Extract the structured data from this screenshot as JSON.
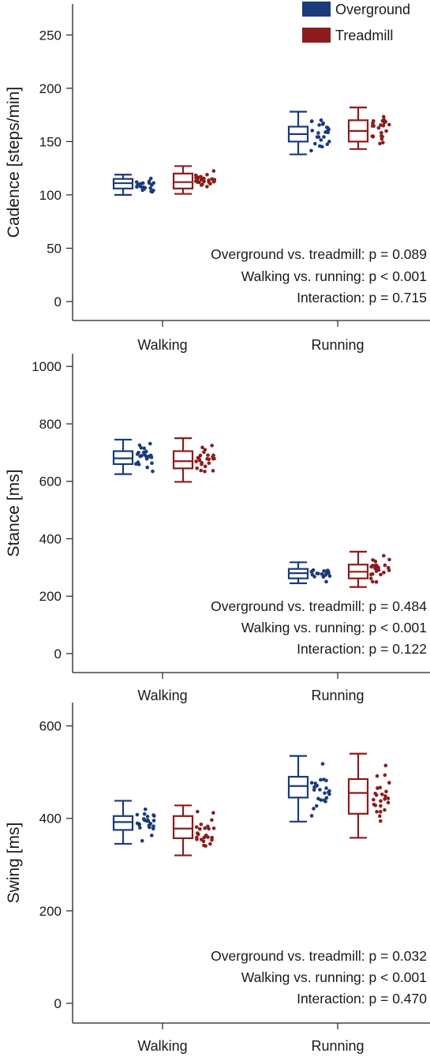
{
  "colors": {
    "overground": "#1b3b7a",
    "treadmill": "#8c1c1c",
    "axis": "#222222"
  },
  "legend": [
    {
      "label": "Overground",
      "color": "#1b3b7a"
    },
    {
      "label": "Treadmill",
      "color": "#8c1c1c"
    }
  ],
  "chart_data": [
    {
      "type": "box",
      "ylabel": "Cadence [steps/min]",
      "ylim": [
        0,
        265
      ],
      "yticks": [
        0,
        50,
        100,
        150,
        200,
        250
      ],
      "categories": [
        "Walking",
        "Running"
      ],
      "series": [
        {
          "name": "Overground",
          "boxes": [
            {
              "category": "Walking",
              "min": 100,
              "q1": 106,
              "median": 111,
              "q3": 115,
              "max": 119
            },
            {
              "category": "Running",
              "min": 138,
              "q1": 150,
              "median": 157,
              "q3": 164,
              "max": 178
            }
          ]
        },
        {
          "name": "Treadmill",
          "boxes": [
            {
              "category": "Walking",
              "min": 101,
              "q1": 106,
              "median": 112,
              "q3": 120,
              "max": 127
            },
            {
              "category": "Running",
              "min": 143,
              "q1": 150,
              "median": 160,
              "q3": 170,
              "max": 182
            }
          ]
        }
      ],
      "stats": [
        "Overground vs. treadmill: p = 0.089",
        "Walking vs. running: p < 0.001",
        "Interaction: p = 0.715"
      ]
    },
    {
      "type": "box",
      "ylabel": "Stance [ms]",
      "ylim": [
        0,
        1050
      ],
      "yticks": [
        0,
        200,
        400,
        600,
        800,
        1000
      ],
      "categories": [
        "Walking",
        "Running"
      ],
      "series": [
        {
          "name": "Overground",
          "boxes": [
            {
              "category": "Walking",
              "min": 625,
              "q1": 660,
              "median": 680,
              "q3": 705,
              "max": 745
            },
            {
              "category": "Running",
              "min": 245,
              "q1": 262,
              "median": 280,
              "q3": 295,
              "max": 318
            }
          ]
        },
        {
          "name": "Treadmill",
          "boxes": [
            {
              "category": "Walking",
              "min": 598,
              "q1": 645,
              "median": 670,
              "q3": 705,
              "max": 750
            },
            {
              "category": "Running",
              "min": 232,
              "q1": 262,
              "median": 285,
              "q3": 310,
              "max": 355
            }
          ]
        }
      ],
      "stats": [
        "Overground vs. treadmill: p = 0.484",
        "Walking vs. running: p < 0.001",
        "Interaction: p = 0.122"
      ]
    },
    {
      "type": "box",
      "ylabel": "Swing [ms]",
      "ylim": [
        0,
        630
      ],
      "yticks": [
        0,
        200,
        400,
        600
      ],
      "categories": [
        "Walking",
        "Running"
      ],
      "series": [
        {
          "name": "Overground",
          "boxes": [
            {
              "category": "Walking",
              "min": 345,
              "q1": 375,
              "median": 392,
              "q3": 405,
              "max": 438
            },
            {
              "category": "Running",
              "min": 393,
              "q1": 445,
              "median": 470,
              "q3": 490,
              "max": 535
            }
          ]
        },
        {
          "name": "Treadmill",
          "boxes": [
            {
              "category": "Walking",
              "min": 320,
              "q1": 357,
              "median": 378,
              "q3": 405,
              "max": 428
            },
            {
              "category": "Running",
              "min": 358,
              "q1": 410,
              "median": 455,
              "q3": 485,
              "max": 540
            }
          ]
        }
      ],
      "stats": [
        "Overground vs. treadmill: p = 0.032",
        "Walking vs. running: p < 0.001",
        "Interaction: p = 0.470"
      ]
    }
  ]
}
